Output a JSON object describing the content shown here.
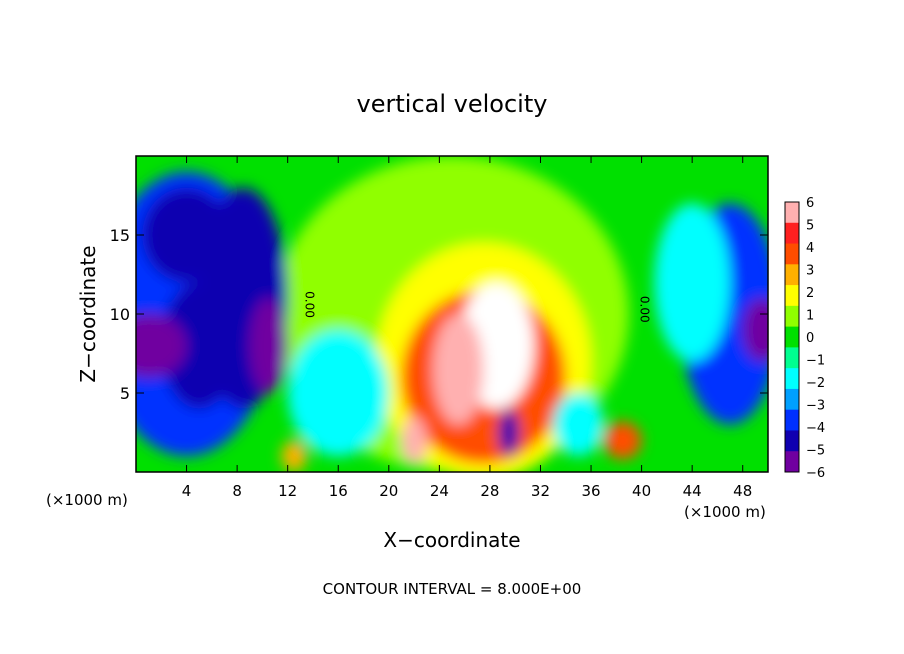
{
  "chart_data": {
    "type": "heatmap",
    "title": "vertical velocity",
    "xlabel": "X−coordinate",
    "ylabel": "Z−coordinate",
    "x_unit_left": "(×1000 m)",
    "x_unit_right": "(×1000 m)",
    "footer": "CONTOUR INTERVAL = 8.000E+00",
    "xlim": [
      0,
      50
    ],
    "ylim": [
      0,
      20
    ],
    "x_ticks": [
      4,
      8,
      12,
      16,
      20,
      24,
      28,
      32,
      36,
      40,
      44,
      48
    ],
    "x_tick_labels": [
      "4",
      "8",
      "12",
      "16",
      "20",
      "24",
      "28",
      "32",
      "36",
      "40",
      "44",
      "48"
    ],
    "y_ticks": [
      5,
      10,
      15
    ],
    "y_tick_labels": [
      "5",
      "10",
      "15"
    ],
    "colorbar": {
      "min": -6,
      "max": 6,
      "tick_labels": [
        "6",
        "5",
        "4",
        "3",
        "2",
        "1",
        "0",
        "−1",
        "−2",
        "−3",
        "−4",
        "−5",
        "−6"
      ],
      "colors": [
        "#ffb0b0",
        "#ff2020",
        "#ff4d00",
        "#ffb000",
        "#ffff00",
        "#90ff00",
        "#00e000",
        "#00ff90",
        "#00ffff",
        "#00a0ff",
        "#0030ff",
        "#1000b0",
        "#7000a0"
      ]
    },
    "contour_labels": [
      {
        "text": "0.00",
        "x": 13.4,
        "y": 10.6
      },
      {
        "text": "0.00",
        "x": 39.9,
        "y": 10.3
      }
    ],
    "regions": [
      {
        "x": 25,
        "y": 10,
        "rx": 14,
        "ry": 10,
        "v": 0.7
      },
      {
        "x": 27.5,
        "y": 7,
        "rx": 8.5,
        "ry": 7.5,
        "v": 2.0
      },
      {
        "x": 27.5,
        "y": 6,
        "rx": 6.5,
        "ry": 5.5,
        "v": 3.6
      },
      {
        "x": 28.5,
        "y": 8,
        "rx": 3,
        "ry": 4,
        "v": 7
      },
      {
        "x": 25.5,
        "y": 6.5,
        "rx": 2,
        "ry": 3.5,
        "v": 6
      },
      {
        "x": 29.5,
        "y": 2.5,
        "rx": 0.8,
        "ry": 1.5,
        "v": -5
      },
      {
        "x": 38.5,
        "y": 2,
        "rx": 1.5,
        "ry": 1.2,
        "v": 4
      },
      {
        "x": 22,
        "y": 2,
        "rx": 1,
        "ry": 1.5,
        "v": 6
      },
      {
        "x": 4,
        "y": 10,
        "rx": 7,
        "ry": 9,
        "v": -3.5
      },
      {
        "x": 5,
        "y": 8,
        "rx": 3,
        "ry": 4,
        "v": -5
      },
      {
        "x": 1,
        "y": 8,
        "rx": 3,
        "ry": 2,
        "v": -6
      },
      {
        "x": 8.5,
        "y": 11,
        "rx": 3.5,
        "ry": 7,
        "v": -4.5
      },
      {
        "x": 10.5,
        "y": 8,
        "rx": 1.5,
        "ry": 3,
        "v": -6
      },
      {
        "x": 4,
        "y": 15,
        "rx": 3.5,
        "ry": 3,
        "v": -5
      },
      {
        "x": 47,
        "y": 10,
        "rx": 4,
        "ry": 7,
        "v": -4
      },
      {
        "x": 49.5,
        "y": 9,
        "rx": 1.5,
        "ry": 2,
        "v": -6
      },
      {
        "x": 44,
        "y": 12,
        "rx": 3,
        "ry": 5,
        "v": -2
      },
      {
        "x": 16,
        "y": 5,
        "rx": 4,
        "ry": 4,
        "v": -1.5
      },
      {
        "x": 12.5,
        "y": 1,
        "rx": 1,
        "ry": 1,
        "v": 3
      },
      {
        "x": 35,
        "y": 3,
        "rx": 2,
        "ry": 2,
        "v": -2
      }
    ]
  }
}
